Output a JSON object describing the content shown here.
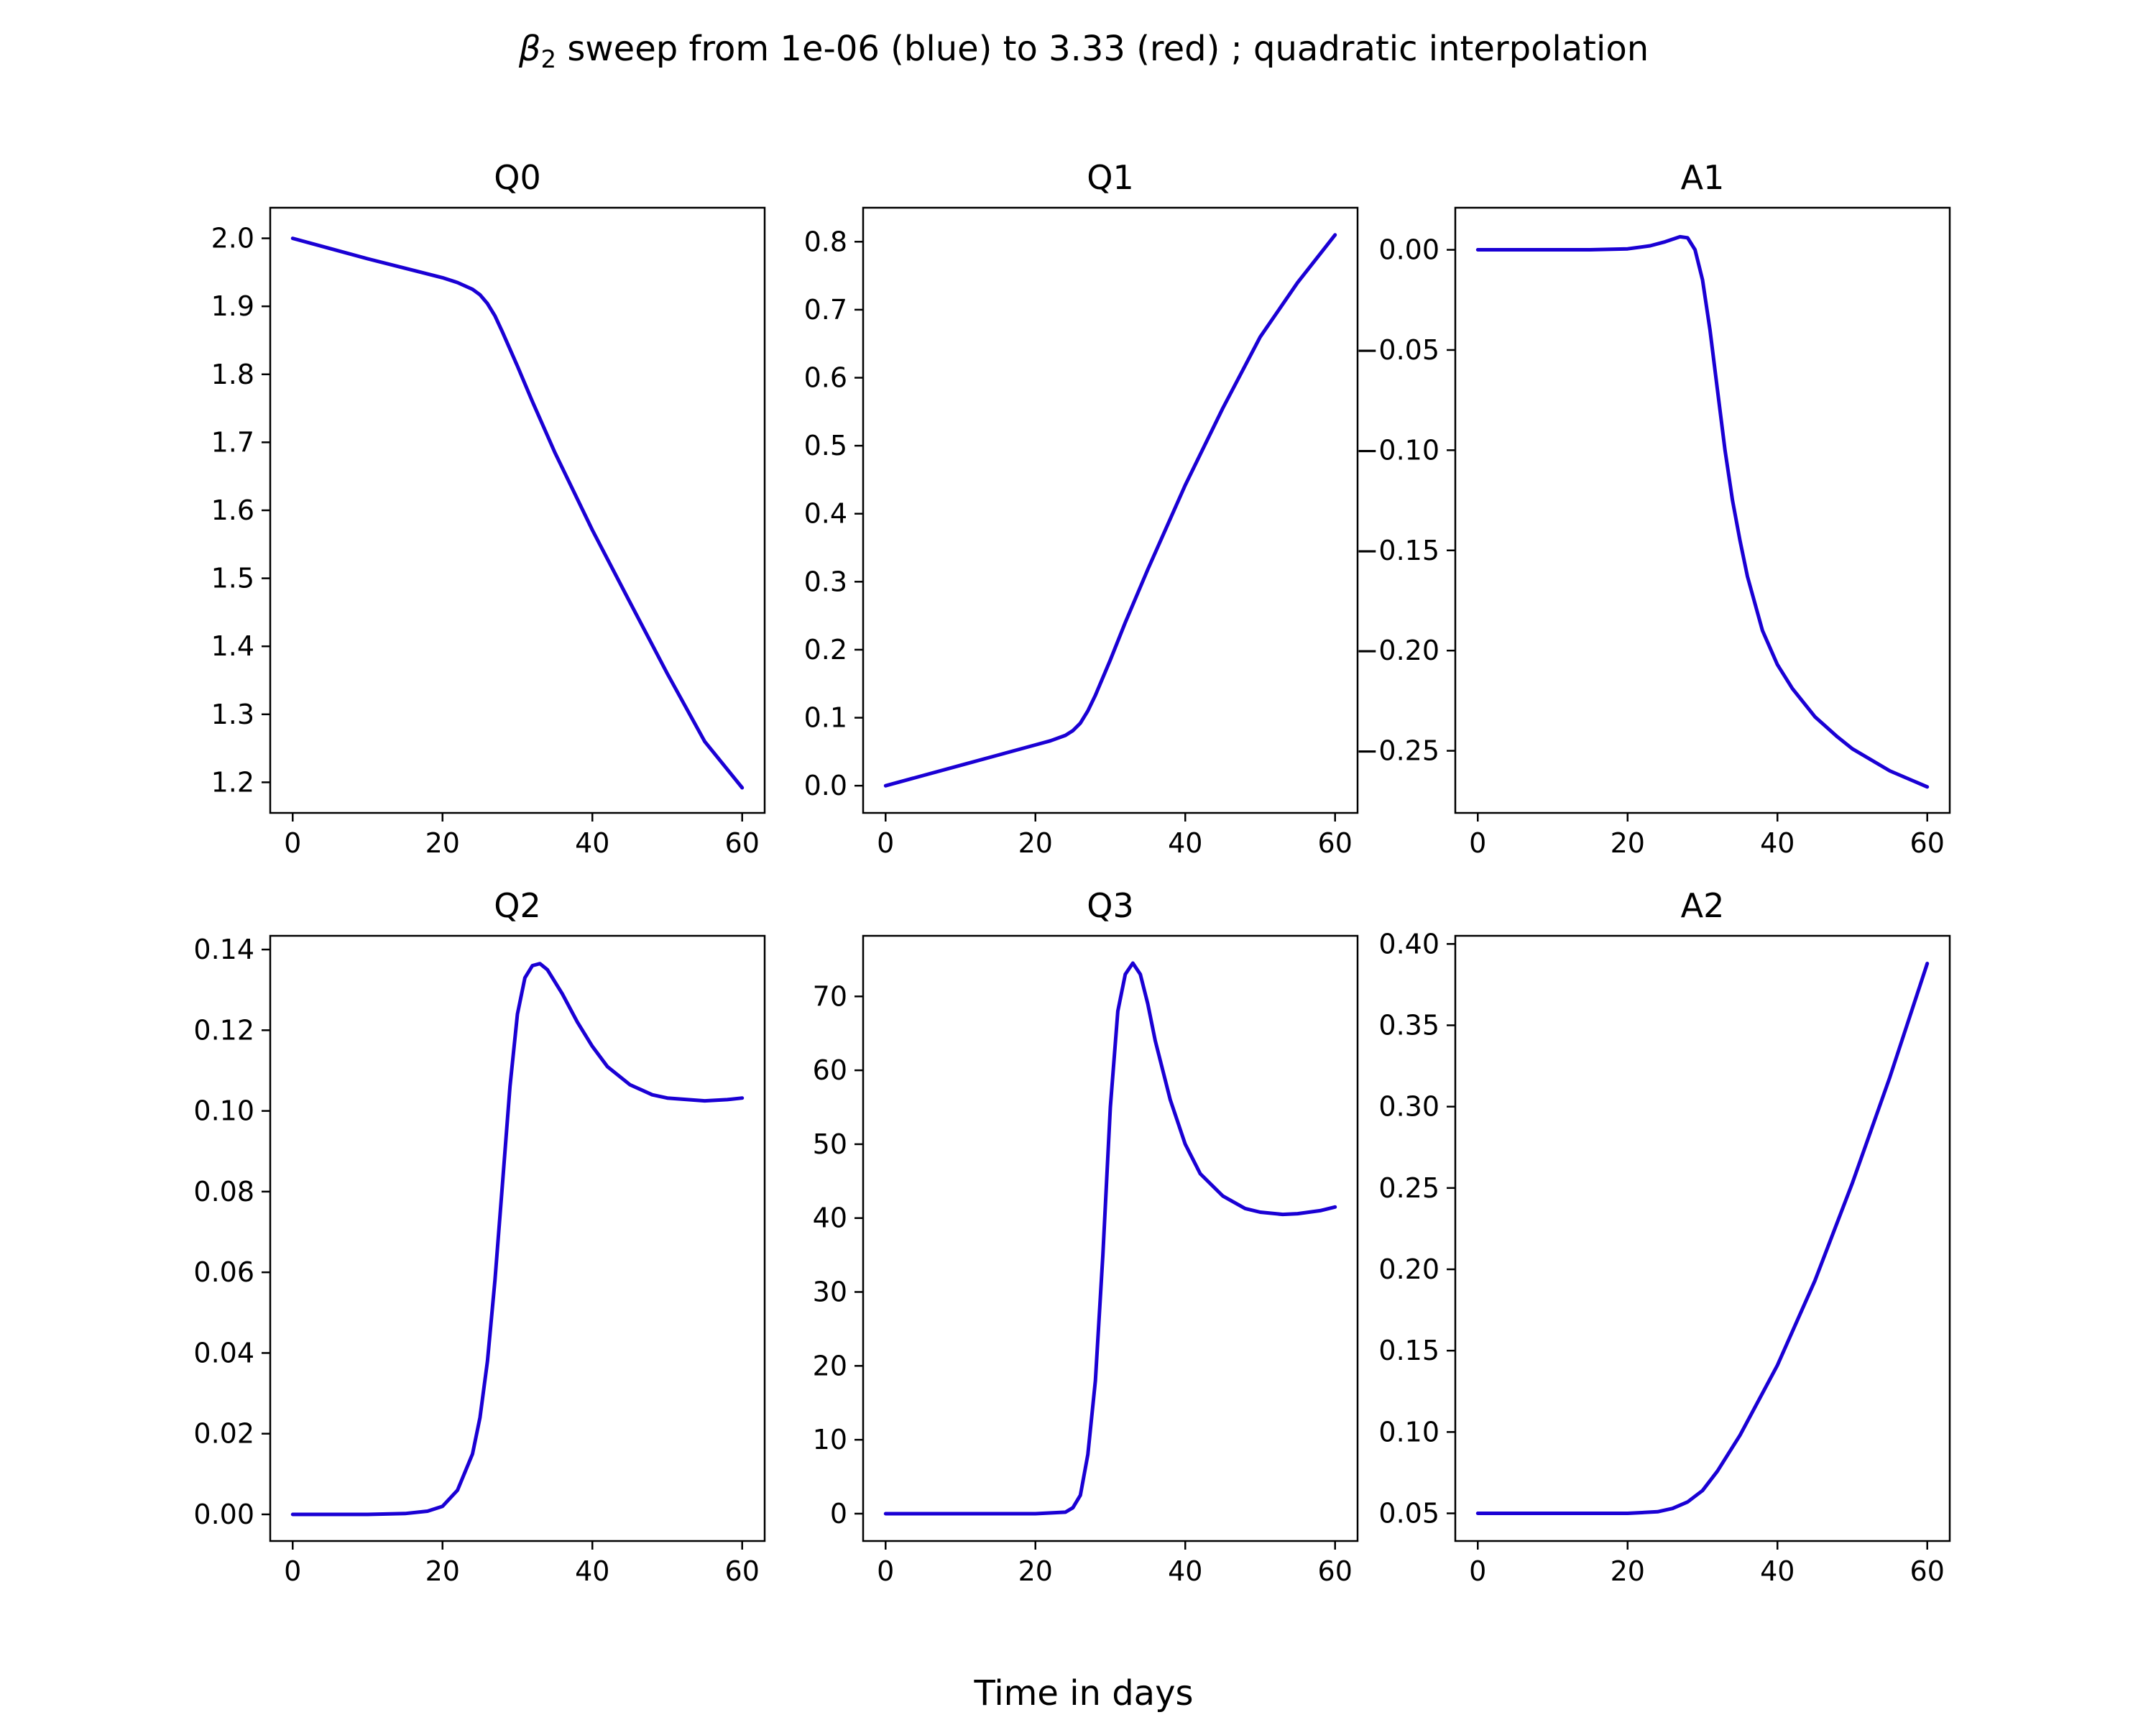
{
  "figure": {
    "suptitle_prefix": "β",
    "suptitle_subscript": "2",
    "suptitle_rest": " sweep from 1e-06 (blue) to 3.33 (red) ; quadratic interpolation",
    "xlabel": "Time in days"
  },
  "colors": {
    "line": "#1a00d4",
    "axes": "#000000",
    "background": "#ffffff"
  },
  "chart_data": [
    {
      "type": "line",
      "title": "Q0",
      "xlim": [
        -3,
        63
      ],
      "ylim": [
        1.155,
        2.045
      ],
      "xticks": [
        0,
        20,
        40,
        60
      ],
      "yticks": [
        1.2,
        1.3,
        1.4,
        1.5,
        1.6,
        1.7,
        1.8,
        1.9,
        2.0
      ],
      "ytick_labels": [
        "1.2",
        "1.3",
        "1.4",
        "1.5",
        "1.6",
        "1.7",
        "1.8",
        "1.9",
        "2.0"
      ],
      "grid": false,
      "series": [
        {
          "x": [
            0,
            5,
            10,
            15,
            20,
            22,
            24,
            25,
            26,
            27,
            28,
            30,
            32,
            35,
            40,
            45,
            50,
            55,
            60
          ],
          "y": [
            2.0,
            1.985,
            1.97,
            1.956,
            1.942,
            1.935,
            1.925,
            1.917,
            1.904,
            1.886,
            1.862,
            1.812,
            1.76,
            1.685,
            1.571,
            1.465,
            1.36,
            1.26,
            1.192
          ]
        }
      ]
    },
    {
      "type": "line",
      "title": "Q1",
      "xlim": [
        -3,
        63
      ],
      "ylim": [
        -0.04,
        0.85
      ],
      "xticks": [
        0,
        20,
        40,
        60
      ],
      "yticks": [
        0.0,
        0.1,
        0.2,
        0.3,
        0.4,
        0.5,
        0.6,
        0.7,
        0.8
      ],
      "ytick_labels": [
        "0.0",
        "0.1",
        "0.2",
        "0.3",
        "0.4",
        "0.5",
        "0.6",
        "0.7",
        "0.8"
      ],
      "grid": false,
      "series": [
        {
          "x": [
            0,
            5,
            10,
            15,
            20,
            22,
            24,
            25,
            26,
            27,
            28,
            30,
            32,
            35,
            40,
            45,
            50,
            55,
            60
          ],
          "y": [
            0.0,
            0.015,
            0.03,
            0.045,
            0.06,
            0.066,
            0.074,
            0.081,
            0.092,
            0.11,
            0.133,
            0.185,
            0.24,
            0.318,
            0.442,
            0.555,
            0.66,
            0.74,
            0.81
          ]
        }
      ]
    },
    {
      "type": "line",
      "title": "A1",
      "xlim": [
        -3,
        63
      ],
      "ylim": [
        -0.281,
        0.021
      ],
      "xticks": [
        0,
        20,
        40,
        60
      ],
      "yticks": [
        0.0,
        -0.05,
        -0.1,
        -0.15,
        -0.2,
        -0.25
      ],
      "ytick_labels": [
        "0.00",
        "−0.05",
        "−0.10",
        "−0.15",
        "−0.20",
        "−0.25"
      ],
      "grid": false,
      "series": [
        {
          "x": [
            0,
            10,
            15,
            20,
            23,
            25,
            27,
            28,
            29,
            30,
            31,
            32,
            33,
            34,
            35,
            36,
            38,
            40,
            42,
            45,
            48,
            50,
            55,
            60
          ],
          "y": [
            0.0,
            0.0,
            0.0,
            0.0005,
            0.002,
            0.004,
            0.0065,
            0.006,
            0.0,
            -0.015,
            -0.04,
            -0.07,
            -0.1,
            -0.125,
            -0.145,
            -0.163,
            -0.19,
            -0.207,
            -0.219,
            -0.233,
            -0.243,
            -0.249,
            -0.26,
            -0.268
          ]
        }
      ]
    },
    {
      "type": "line",
      "title": "Q2",
      "xlim": [
        -3,
        63
      ],
      "ylim": [
        -0.0066,
        0.1434
      ],
      "xticks": [
        0,
        20,
        40,
        60
      ],
      "yticks": [
        0.0,
        0.02,
        0.04,
        0.06,
        0.08,
        0.1,
        0.12,
        0.14
      ],
      "ytick_labels": [
        "0.00",
        "0.02",
        "0.04",
        "0.06",
        "0.08",
        "0.10",
        "0.12",
        "0.14"
      ],
      "grid": false,
      "series": [
        {
          "x": [
            0,
            10,
            15,
            18,
            20,
            22,
            24,
            25,
            26,
            27,
            28,
            29,
            30,
            31,
            32,
            33,
            34,
            36,
            38,
            40,
            42,
            45,
            48,
            50,
            55,
            58,
            60
          ],
          "y": [
            0.0,
            0.0,
            0.0002,
            0.0008,
            0.002,
            0.006,
            0.015,
            0.024,
            0.038,
            0.058,
            0.082,
            0.106,
            0.124,
            0.133,
            0.136,
            0.1365,
            0.135,
            0.129,
            0.122,
            0.116,
            0.111,
            0.1065,
            0.104,
            0.1032,
            0.1025,
            0.1028,
            0.1032
          ]
        }
      ]
    },
    {
      "type": "line",
      "title": "Q3",
      "xlim": [
        -3,
        63
      ],
      "ylim": [
        -3.7,
        78.2
      ],
      "xticks": [
        0,
        20,
        40,
        60
      ],
      "yticks": [
        0,
        10,
        20,
        30,
        40,
        50,
        60,
        70
      ],
      "ytick_labels": [
        "0",
        "10",
        "20",
        "30",
        "40",
        "50",
        "60",
        "70"
      ],
      "grid": false,
      "series": [
        {
          "x": [
            0,
            10,
            20,
            24,
            25,
            26,
            27,
            28,
            29,
            30,
            31,
            32,
            33,
            34,
            35,
            36,
            38,
            40,
            42,
            45,
            48,
            50,
            53,
            55,
            58,
            60
          ],
          "y": [
            0,
            0,
            0,
            0.2,
            0.8,
            2.5,
            8,
            18,
            35,
            55,
            68,
            73,
            74.5,
            73,
            69,
            64,
            56,
            50,
            46,
            43,
            41.3,
            40.8,
            40.5,
            40.6,
            41.0,
            41.5
          ]
        }
      ]
    },
    {
      "type": "line",
      "title": "A2",
      "xlim": [
        -3,
        63
      ],
      "ylim": [
        0.033,
        0.405
      ],
      "xticks": [
        0,
        20,
        40,
        60
      ],
      "yticks": [
        0.05,
        0.1,
        0.15,
        0.2,
        0.25,
        0.3,
        0.35,
        0.4
      ],
      "ytick_labels": [
        "0.05",
        "0.10",
        "0.15",
        "0.20",
        "0.25",
        "0.30",
        "0.35",
        "0.40"
      ],
      "grid": false,
      "series": [
        {
          "x": [
            0,
            10,
            20,
            24,
            26,
            28,
            30,
            32,
            35,
            40,
            45,
            50,
            55,
            60
          ],
          "y": [
            0.05,
            0.05,
            0.05,
            0.051,
            0.053,
            0.057,
            0.064,
            0.076,
            0.098,
            0.141,
            0.193,
            0.253,
            0.318,
            0.388
          ]
        }
      ]
    }
  ]
}
